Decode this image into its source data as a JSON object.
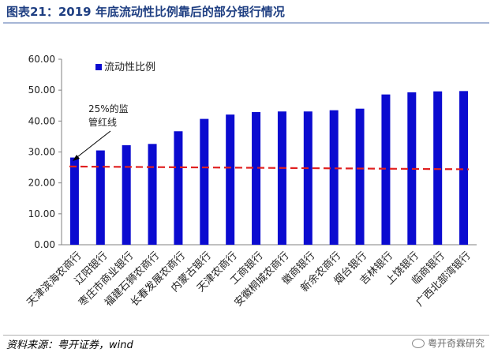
{
  "title": "图表21：2019 年底流动性比例靠后的部分银行情况",
  "source": "资料来源：粤开证券，wind",
  "watermark": "粤开奇霖研究",
  "chart_data": {
    "type": "bar",
    "series": [
      {
        "name": "流动性比例",
        "color": "#0b0bd0",
        "values": [
          28.2,
          30.5,
          32.2,
          32.6,
          36.7,
          40.7,
          42.1,
          42.9,
          43.1,
          43.1,
          43.5,
          44.0,
          48.6,
          49.3,
          49.6,
          49.7
        ]
      }
    ],
    "categories": [
      "天津滨海农商行",
      "辽阳银行",
      "枣庄市商业银行",
      "福建石狮农商行",
      "长春发展农商行",
      "内蒙古银行",
      "天津农商行",
      "工商银行",
      "安徽桐城农商行",
      "徽商银行",
      "新余农商行",
      "烟台银行",
      "吉林银行",
      "上饶银行",
      "临商银行",
      "广西北部湾银行"
    ],
    "ylim": [
      0,
      60
    ],
    "yticks": [
      "0.00",
      "10.00",
      "20.00",
      "30.00",
      "40.00",
      "50.00",
      "60.00"
    ],
    "reference_line": {
      "value": 25,
      "color": "#e02020",
      "style": "dashed"
    },
    "annotation": {
      "line1": "25%的监",
      "line2": "管红线"
    },
    "legend": "top-left",
    "grid": false
  }
}
